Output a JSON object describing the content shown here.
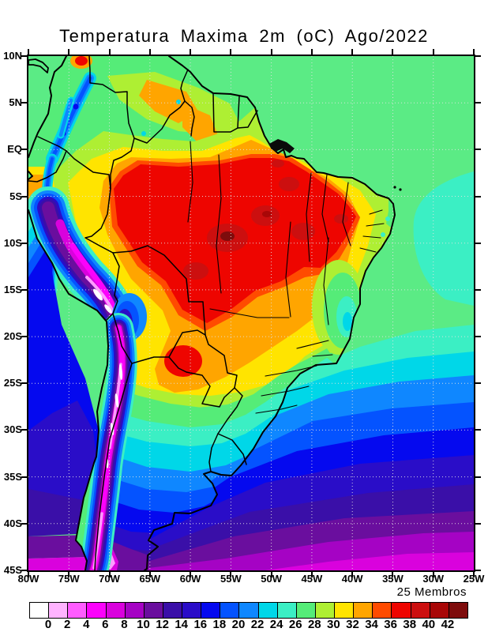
{
  "title": "Temperatura Maxima 2m (oC) Ago/2022",
  "axes": {
    "lat_labels": [
      "10N",
      "5N",
      "EQ",
      "5S",
      "10S",
      "15S",
      "20S",
      "25S",
      "30S",
      "35S",
      "40S",
      "45S"
    ],
    "lon_labels": [
      "80W",
      "75W",
      "70W",
      "65W",
      "60W",
      "55W",
      "50W",
      "45W",
      "40W",
      "35W",
      "30W",
      "25W"
    ]
  },
  "legend": {
    "members": "25 Membros",
    "boundaries": [
      "0",
      "2",
      "4",
      "6",
      "8",
      "10",
      "12",
      "14",
      "16",
      "18",
      "20",
      "22",
      "24",
      "26",
      "28",
      "30",
      "32",
      "34",
      "36",
      "38",
      "40",
      "42"
    ],
    "colors": [
      "#FFFFFF",
      "#FFB3FF",
      "#FF5CFF",
      "#FB02FB",
      "#D902DD",
      "#A503C4",
      "#6A0E9E",
      "#3A0FA8",
      "#2A0DC8",
      "#0509EF",
      "#0453FF",
      "#0F87FF",
      "#00D7E8",
      "#3BEFC4",
      "#55EC78",
      "#AEEF33",
      "#FFE400",
      "#FFA500",
      "#FF4B00",
      "#EE0500",
      "#CC0F0F",
      "#A80707",
      "#7E0C0C"
    ]
  },
  "map_regions": [
    {
      "region": "central Amazon / interior Brazil",
      "shade_c": "36-40"
    },
    {
      "region": "northeast Brazil interior",
      "shade_c": "34-38"
    },
    {
      "region": "Andes cordillera strip",
      "shade_c": "0-8"
    },
    {
      "region": "tropical Atlantic ocean",
      "shade_c": "24-28"
    },
    {
      "region": "Pacific coast (Peru/Chile current)",
      "shade_c": "14-18"
    },
    {
      "region": "southeast Brazil / Uruguay",
      "shade_c": "20-26"
    },
    {
      "region": "Patagonia and far south ocean",
      "shade_c": "2-12"
    }
  ]
}
